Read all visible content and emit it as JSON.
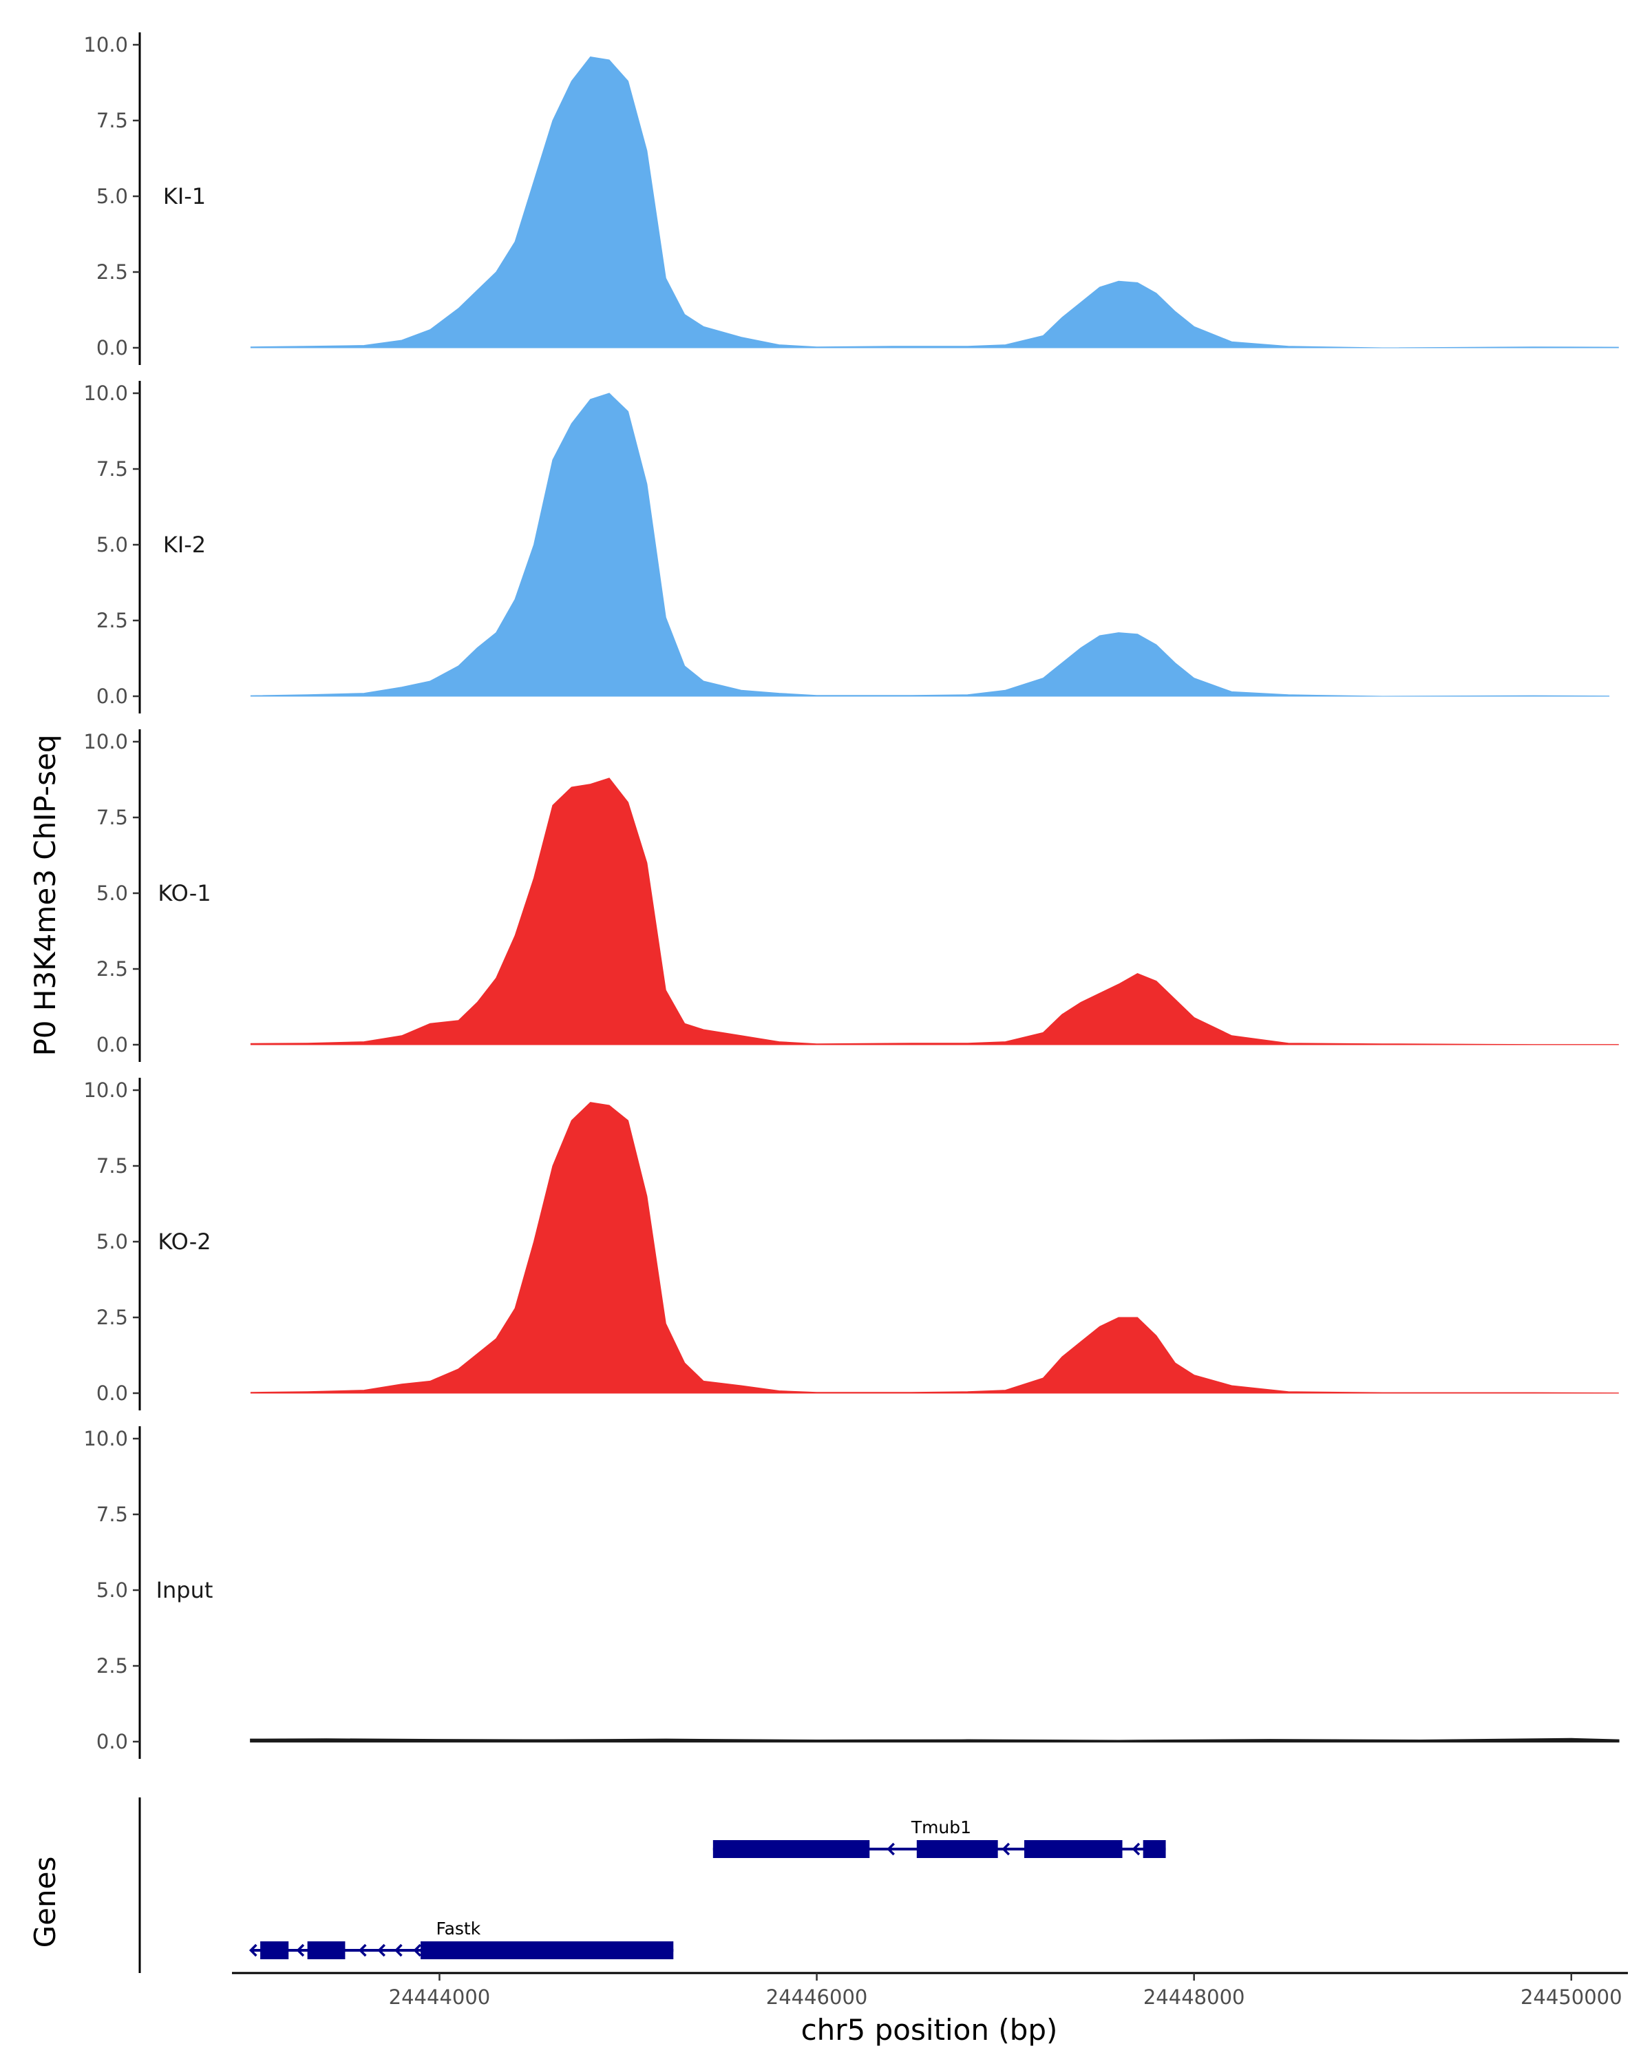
{
  "chart_data": {
    "type": "area",
    "ylabel": "P0 H3K4me3 ChIP-seq",
    "xlabel": "chr5 position (bp)",
    "gene_track_label": "Genes",
    "xlim": [
      24442900,
      24450300
    ],
    "ylim": [
      0,
      10
    ],
    "yticks": [
      0,
      2.5,
      5,
      7.5,
      10
    ],
    "ytick_labels": [
      "0.0",
      "2.5",
      "5.0",
      "7.5",
      "10.0"
    ],
    "xticks": [
      24444000,
      24446000,
      24448000,
      24450000
    ],
    "xtick_labels": [
      "24444000",
      "24446000",
      "24448000",
      "24450000"
    ],
    "grid": false,
    "series": [
      {
        "name": "KI-1",
        "color": "#62AEEE",
        "points": [
          [
            24443000,
            0.03
          ],
          [
            24443300,
            0.05
          ],
          [
            24443600,
            0.08
          ],
          [
            24443800,
            0.25
          ],
          [
            24443950,
            0.6
          ],
          [
            24444100,
            1.3
          ],
          [
            24444200,
            1.9
          ],
          [
            24444300,
            2.5
          ],
          [
            24444400,
            3.5
          ],
          [
            24444500,
            5.5
          ],
          [
            24444600,
            7.5
          ],
          [
            24444700,
            8.8
          ],
          [
            24444800,
            9.6
          ],
          [
            24444900,
            9.5
          ],
          [
            24445000,
            8.8
          ],
          [
            24445100,
            6.5
          ],
          [
            24445200,
            2.3
          ],
          [
            24445300,
            1.1
          ],
          [
            24445400,
            0.7
          ],
          [
            24445600,
            0.35
          ],
          [
            24445800,
            0.1
          ],
          [
            24446000,
            0.03
          ],
          [
            24446400,
            0.05
          ],
          [
            24446800,
            0.05
          ],
          [
            24447000,
            0.1
          ],
          [
            24447200,
            0.4
          ],
          [
            24447300,
            1.0
          ],
          [
            24447400,
            1.5
          ],
          [
            24447500,
            2.0
          ],
          [
            24447600,
            2.2
          ],
          [
            24447700,
            2.15
          ],
          [
            24447800,
            1.8
          ],
          [
            24447900,
            1.2
          ],
          [
            24448000,
            0.7
          ],
          [
            24448200,
            0.2
          ],
          [
            24448500,
            0.05
          ],
          [
            24449000,
            0.0
          ],
          [
            24449800,
            0.03
          ],
          [
            24450250,
            0.02
          ]
        ]
      },
      {
        "name": "KI-2",
        "color": "#62AEEE",
        "points": [
          [
            24443000,
            0.02
          ],
          [
            24443300,
            0.05
          ],
          [
            24443600,
            0.1
          ],
          [
            24443800,
            0.3
          ],
          [
            24443950,
            0.5
          ],
          [
            24444100,
            1.0
          ],
          [
            24444200,
            1.6
          ],
          [
            24444300,
            2.1
          ],
          [
            24444400,
            3.2
          ],
          [
            24444500,
            5.0
          ],
          [
            24444600,
            7.8
          ],
          [
            24444700,
            9.0
          ],
          [
            24444800,
            9.8
          ],
          [
            24444900,
            10.0
          ],
          [
            24445000,
            9.4
          ],
          [
            24445100,
            7.0
          ],
          [
            24445200,
            2.6
          ],
          [
            24445300,
            1.0
          ],
          [
            24445400,
            0.5
          ],
          [
            24445600,
            0.2
          ],
          [
            24445800,
            0.1
          ],
          [
            24446000,
            0.03
          ],
          [
            24446500,
            0.03
          ],
          [
            24446800,
            0.05
          ],
          [
            24447000,
            0.2
          ],
          [
            24447200,
            0.6
          ],
          [
            24447300,
            1.1
          ],
          [
            24447400,
            1.6
          ],
          [
            24447500,
            2.0
          ],
          [
            24447600,
            2.1
          ],
          [
            24447700,
            2.05
          ],
          [
            24447800,
            1.7
          ],
          [
            24447900,
            1.1
          ],
          [
            24448000,
            0.6
          ],
          [
            24448200,
            0.15
          ],
          [
            24448500,
            0.05
          ],
          [
            24449000,
            0.0
          ],
          [
            24449800,
            0.02
          ],
          [
            24450200,
            0.01
          ]
        ]
      },
      {
        "name": "KO-1",
        "color": "#EE2C2C",
        "points": [
          [
            24443000,
            0.04
          ],
          [
            24443300,
            0.05
          ],
          [
            24443600,
            0.1
          ],
          [
            24443800,
            0.3
          ],
          [
            24443950,
            0.7
          ],
          [
            24444100,
            0.8
          ],
          [
            24444200,
            1.4
          ],
          [
            24444300,
            2.2
          ],
          [
            24444400,
            3.6
          ],
          [
            24444500,
            5.5
          ],
          [
            24444600,
            7.9
          ],
          [
            24444700,
            8.5
          ],
          [
            24444800,
            8.6
          ],
          [
            24444900,
            8.8
          ],
          [
            24445000,
            8.0
          ],
          [
            24445100,
            6.0
          ],
          [
            24445200,
            1.8
          ],
          [
            24445300,
            0.7
          ],
          [
            24445400,
            0.5
          ],
          [
            24445600,
            0.3
          ],
          [
            24445800,
            0.1
          ],
          [
            24446000,
            0.03
          ],
          [
            24446500,
            0.05
          ],
          [
            24446800,
            0.05
          ],
          [
            24447000,
            0.1
          ],
          [
            24447200,
            0.4
          ],
          [
            24447300,
            1.0
          ],
          [
            24447400,
            1.4
          ],
          [
            24447500,
            1.7
          ],
          [
            24447600,
            2.0
          ],
          [
            24447700,
            2.35
          ],
          [
            24447800,
            2.1
          ],
          [
            24447900,
            1.5
          ],
          [
            24448000,
            0.9
          ],
          [
            24448200,
            0.3
          ],
          [
            24448500,
            0.05
          ],
          [
            24449000,
            0.03
          ],
          [
            24449800,
            0.01
          ],
          [
            24450250,
            0.01
          ]
        ]
      },
      {
        "name": "KO-2",
        "color": "#EE2C2C",
        "points": [
          [
            24443000,
            0.03
          ],
          [
            24443300,
            0.05
          ],
          [
            24443600,
            0.1
          ],
          [
            24443800,
            0.3
          ],
          [
            24443950,
            0.4
          ],
          [
            24444100,
            0.8
          ],
          [
            24444200,
            1.3
          ],
          [
            24444300,
            1.8
          ],
          [
            24444400,
            2.8
          ],
          [
            24444500,
            5.0
          ],
          [
            24444600,
            7.5
          ],
          [
            24444700,
            9.0
          ],
          [
            24444800,
            9.6
          ],
          [
            24444900,
            9.5
          ],
          [
            24445000,
            9.0
          ],
          [
            24445100,
            6.5
          ],
          [
            24445200,
            2.3
          ],
          [
            24445300,
            1.0
          ],
          [
            24445400,
            0.4
          ],
          [
            24445600,
            0.25
          ],
          [
            24445800,
            0.08
          ],
          [
            24446000,
            0.03
          ],
          [
            24446500,
            0.03
          ],
          [
            24446800,
            0.05
          ],
          [
            24447000,
            0.1
          ],
          [
            24447200,
            0.5
          ],
          [
            24447300,
            1.2
          ],
          [
            24447400,
            1.7
          ],
          [
            24447500,
            2.2
          ],
          [
            24447600,
            2.5
          ],
          [
            24447700,
            2.5
          ],
          [
            24447800,
            1.9
          ],
          [
            24447900,
            1.0
          ],
          [
            24448000,
            0.6
          ],
          [
            24448200,
            0.25
          ],
          [
            24448500,
            0.05
          ],
          [
            24449000,
            0.02
          ],
          [
            24449800,
            0.02
          ],
          [
            24450250,
            0.01
          ]
        ]
      },
      {
        "name": "Input",
        "color": "#1a1a1a",
        "points": [
          [
            24443000,
            0.07
          ],
          [
            24443400,
            0.08
          ],
          [
            24444000,
            0.06
          ],
          [
            24444600,
            0.05
          ],
          [
            24445200,
            0.07
          ],
          [
            24446000,
            0.04
          ],
          [
            24446800,
            0.05
          ],
          [
            24447600,
            0.03
          ],
          [
            24448400,
            0.06
          ],
          [
            24449200,
            0.04
          ],
          [
            24450000,
            0.09
          ],
          [
            24450250,
            0.05
          ]
        ]
      }
    ],
    "genes": [
      {
        "name": "Tmub1",
        "strand": "-",
        "row": 1,
        "color": "#00008B",
        "start": 24445450,
        "end": 24447850,
        "exons": [
          [
            24445450,
            24446280
          ],
          [
            24446530,
            24446960
          ],
          [
            24447100,
            24447620
          ],
          [
            24447730,
            24447850
          ]
        ],
        "arrows": [
          24446380,
          24446990,
          24447680
        ]
      },
      {
        "name": "Fastk",
        "strand": "-",
        "row": 0,
        "color": "#00008B",
        "start": 24443000,
        "end": 24445240,
        "exons": [
          [
            24443050,
            24443200
          ],
          [
            24443300,
            24443500
          ],
          [
            24443900,
            24445240
          ]
        ],
        "arrows": [
          24443000,
          24443250,
          24443580,
          24443680,
          24443770,
          24443870
        ]
      }
    ]
  }
}
